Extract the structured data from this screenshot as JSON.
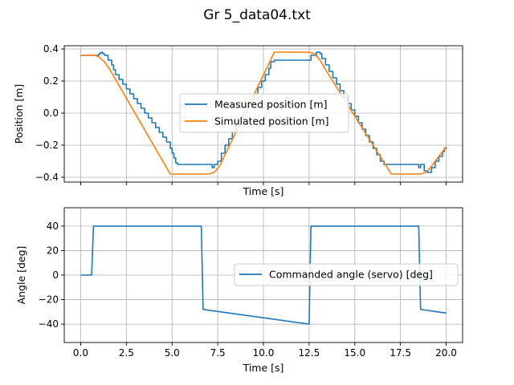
{
  "figure_title": "Gr 5_data04.txt",
  "colors": {
    "measured": "#1f77b4",
    "simulated": "#ff7f0e",
    "commanded": "#1f77b4",
    "grid": "#b0b0b0"
  },
  "chart_data": [
    {
      "type": "line",
      "title": "",
      "xlabel": "Time [s]",
      "ylabel": "Position [m]",
      "xlim": [
        -0.9,
        20.9
      ],
      "ylim": [
        -0.43,
        0.42
      ],
      "xticks": [
        0,
        2.5,
        5,
        7.5,
        10,
        12.5,
        15,
        17.5,
        20
      ],
      "xtick_labels_shown": false,
      "yticks": [
        -0.4,
        -0.2,
        0.0,
        0.2,
        0.4
      ],
      "ytick_labels": [
        "−0.4",
        "−0.2",
        "0.0",
        "0.2",
        "0.4"
      ],
      "grid": true,
      "legend_placement": "center",
      "series": [
        {
          "name": "Measured position [m]",
          "color": "#1f77b4",
          "step": true,
          "points": [
            [
              0,
              0.36
            ],
            [
              0.95,
              0.36
            ],
            [
              1.0,
              0.37
            ],
            [
              1.1,
              0.38
            ],
            [
              1.2,
              0.37
            ],
            [
              1.3,
              0.36
            ],
            [
              1.5,
              0.33
            ],
            [
              1.7,
              0.3
            ],
            [
              1.8,
              0.27
            ],
            [
              1.9,
              0.24
            ],
            [
              2.1,
              0.21
            ],
            [
              2.3,
              0.18
            ],
            [
              2.5,
              0.15
            ],
            [
              2.7,
              0.12
            ],
            [
              2.9,
              0.09
            ],
            [
              3.1,
              0.06
            ],
            [
              3.3,
              0.03
            ],
            [
              3.5,
              0.0
            ],
            [
              3.7,
              -0.03
            ],
            [
              3.9,
              -0.06
            ],
            [
              4.1,
              -0.09
            ],
            [
              4.3,
              -0.12
            ],
            [
              4.5,
              -0.15
            ],
            [
              4.7,
              -0.18
            ],
            [
              4.9,
              -0.22
            ],
            [
              5.0,
              -0.25
            ],
            [
              5.1,
              -0.28
            ],
            [
              5.2,
              -0.31
            ],
            [
              5.3,
              -0.32
            ],
            [
              7.1,
              -0.32
            ],
            [
              7.2,
              -0.34
            ],
            [
              7.3,
              -0.32
            ],
            [
              7.5,
              -0.3
            ],
            [
              7.7,
              -0.25
            ],
            [
              7.9,
              -0.2
            ],
            [
              8.1,
              -0.16
            ],
            [
              8.3,
              -0.12
            ],
            [
              8.5,
              -0.08
            ],
            [
              8.7,
              -0.04
            ],
            [
              8.9,
              0.0
            ],
            [
              9.1,
              0.04
            ],
            [
              9.3,
              0.08
            ],
            [
              9.5,
              0.12
            ],
            [
              9.7,
              0.16
            ],
            [
              9.9,
              0.2
            ],
            [
              10.1,
              0.24
            ],
            [
              10.3,
              0.28
            ],
            [
              10.4,
              0.32
            ],
            [
              10.6,
              0.33
            ],
            [
              12.55,
              0.33
            ],
            [
              12.6,
              0.36
            ],
            [
              12.9,
              0.38
            ],
            [
              13.1,
              0.37
            ],
            [
              13.2,
              0.34
            ],
            [
              13.4,
              0.3
            ],
            [
              13.6,
              0.26
            ],
            [
              13.8,
              0.22
            ],
            [
              14.0,
              0.18
            ],
            [
              14.2,
              0.14
            ],
            [
              14.4,
              0.1
            ],
            [
              14.6,
              0.06
            ],
            [
              14.8,
              0.02
            ],
            [
              15.0,
              -0.02
            ],
            [
              15.2,
              -0.06
            ],
            [
              15.4,
              -0.1
            ],
            [
              15.6,
              -0.14
            ],
            [
              15.8,
              -0.18
            ],
            [
              16.0,
              -0.22
            ],
            [
              16.2,
              -0.26
            ],
            [
              16.4,
              -0.3
            ],
            [
              16.6,
              -0.32
            ],
            [
              18.4,
              -0.32
            ],
            [
              18.5,
              -0.34
            ],
            [
              18.6,
              -0.32
            ],
            [
              18.8,
              -0.36
            ],
            [
              19.0,
              -0.37
            ],
            [
              19.2,
              -0.34
            ],
            [
              19.4,
              -0.3
            ],
            [
              19.6,
              -0.27
            ],
            [
              19.8,
              -0.24
            ],
            [
              19.9,
              -0.22
            ],
            [
              20.0,
              -0.21
            ]
          ]
        },
        {
          "name": "Simulated position [m]",
          "color": "#ff7f0e",
          "step": false,
          "points": [
            [
              0,
              0.36
            ],
            [
              0.8,
              0.36
            ],
            [
              1.0,
              0.35
            ],
            [
              1.3,
              0.32
            ],
            [
              1.6,
              0.27
            ],
            [
              4.9,
              -0.38
            ],
            [
              7.0,
              -0.38
            ],
            [
              7.3,
              -0.37
            ],
            [
              7.6,
              -0.33
            ],
            [
              7.9,
              -0.26
            ],
            [
              10.6,
              0.38
            ],
            [
              12.5,
              0.38
            ],
            [
              12.8,
              0.37
            ],
            [
              13.1,
              0.33
            ],
            [
              13.4,
              0.27
            ],
            [
              17.0,
              -0.38
            ],
            [
              18.6,
              -0.38
            ],
            [
              18.9,
              -0.37
            ],
            [
              19.2,
              -0.33
            ],
            [
              19.6,
              -0.27
            ],
            [
              20.0,
              -0.21
            ]
          ]
        }
      ]
    },
    {
      "type": "line",
      "title": "",
      "xlabel": "Time [s]",
      "ylabel": "Angle [deg]",
      "xlim": [
        -0.9,
        20.9
      ],
      "ylim": [
        -55,
        55
      ],
      "xticks": [
        0,
        2.5,
        5,
        7.5,
        10,
        12.5,
        15,
        17.5,
        20
      ],
      "xtick_labels": [
        "0.0",
        "2.5",
        "5.0",
        "7.5",
        "10.0",
        "12.5",
        "15.0",
        "17.5",
        "20.0"
      ],
      "yticks": [
        -40,
        -20,
        0,
        20,
        40
      ],
      "ytick_labels": [
        "−40",
        "−20",
        "0",
        "20",
        "40"
      ],
      "grid": true,
      "legend_placement": "center-right",
      "series": [
        {
          "name": "Commanded angle (servo) [deg]",
          "color": "#1f77b4",
          "step": false,
          "points": [
            [
              0,
              0
            ],
            [
              0.6,
              0
            ],
            [
              0.7,
              40
            ],
            [
              6.6,
              40
            ],
            [
              6.7,
              -28
            ],
            [
              12.5,
              -40
            ],
            [
              12.6,
              40
            ],
            [
              18.5,
              40
            ],
            [
              18.6,
              -28
            ],
            [
              20.0,
              -31
            ]
          ]
        }
      ]
    }
  ]
}
